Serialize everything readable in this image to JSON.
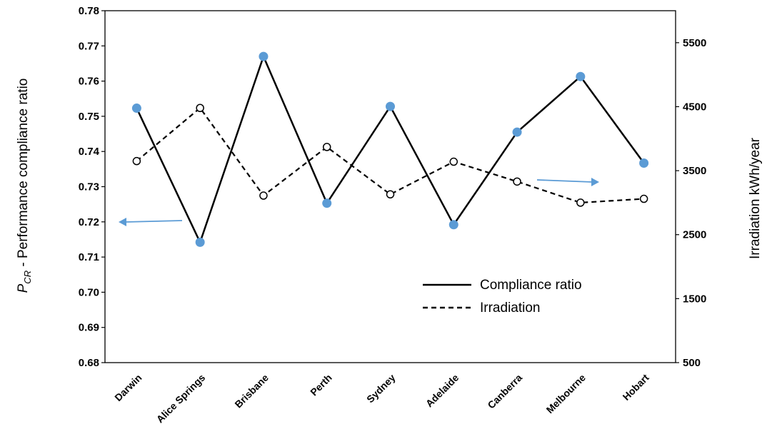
{
  "chart_data": {
    "type": "line",
    "categories": [
      "Darwin",
      "Alice Springs",
      "Brisbane",
      "Perth",
      "Sydney",
      "Adelaide",
      "Canberra",
      "Melbourne",
      "Hobart"
    ],
    "series": [
      {
        "name": "Compliance ratio",
        "axis": "left",
        "style": "solid",
        "marker_color": "#5B9BD5",
        "values": [
          0.7523,
          0.7142,
          0.767,
          0.7253,
          0.7528,
          0.7192,
          0.7455,
          0.7613,
          0.7367
        ]
      },
      {
        "name": "Irradiation",
        "axis": "right",
        "style": "dashed",
        "values": [
          3650,
          4480,
          3110,
          3870,
          3130,
          3640,
          3330,
          3000,
          3060
        ]
      }
    ],
    "ylabel_prefix": "P",
    "ylabel_sub": "CR",
    "ylabel_rest": " - Performance compliance ratio",
    "y2label": "Irradiation kWh/year",
    "ylim": [
      0.68,
      0.78
    ],
    "y2lim": [
      500,
      6000
    ],
    "yticks": [
      "0.68",
      "0.69",
      "0.70",
      "0.71",
      "0.72",
      "0.73",
      "0.74",
      "0.75",
      "0.76",
      "0.77",
      "0.78"
    ],
    "y2ticks": [
      "500",
      "1500",
      "2500",
      "3500",
      "4500",
      "5500"
    ],
    "legend": {
      "position": "lower-right",
      "solid_label": "Compliance ratio",
      "dashed_label": "Irradiation"
    },
    "grid": false,
    "annotations": [
      {
        "type": "arrow",
        "direction": "left",
        "meaning": "compliance ratio uses left axis"
      },
      {
        "type": "arrow",
        "direction": "right",
        "meaning": "irradiation uses right axis"
      }
    ],
    "colors": {
      "line": "#000000",
      "marker": "#5B9BD5",
      "arrow": "#5B9BD5"
    }
  }
}
